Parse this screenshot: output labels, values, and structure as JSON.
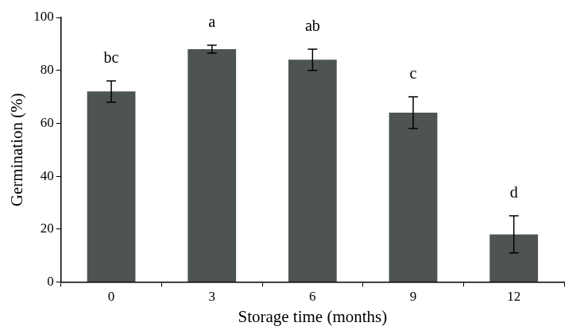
{
  "chart_data": {
    "type": "bar",
    "x_label": "Storage time (months)",
    "y_label": "Germination (%)",
    "categories": [
      "0",
      "3",
      "6",
      "9",
      "12"
    ],
    "values": [
      72,
      88,
      84,
      64,
      18
    ],
    "errors": [
      4,
      1.5,
      4,
      6,
      7
    ],
    "annotations": [
      "bc",
      "a",
      "ab",
      "c",
      "d"
    ],
    "color": "#4d5452",
    "ylim": [
      0,
      100
    ],
    "yticks": [
      0,
      20,
      40,
      60,
      80,
      100
    ],
    "grid": false
  }
}
